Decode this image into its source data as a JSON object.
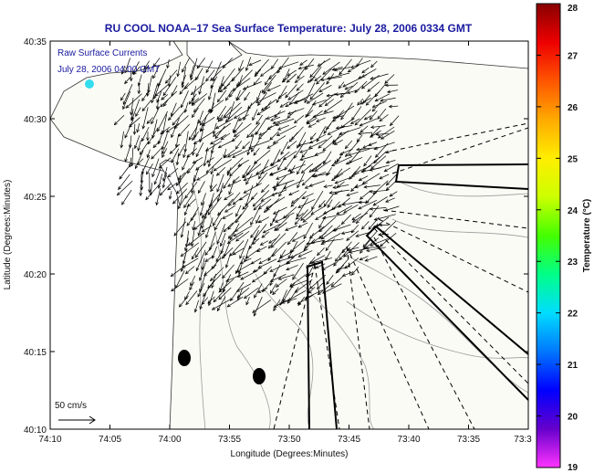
{
  "title": "RU COOL  NOAA–17  Sea Surface Temperature:  July 28, 2006 0334 GMT",
  "legend": {
    "line1": "Raw Surface Currents",
    "line2": "July 28, 2006 04:00 GMT",
    "scale_label": "50 cm/s"
  },
  "axes": {
    "xlabel": "Longitude (Degrees:Minutes)",
    "ylabel": "Latitude (Degrees:Minutes)",
    "x_ticks": [
      "74:10",
      "74:05",
      "74:00",
      "73:55",
      "73:50",
      "73:45",
      "73:40",
      "73:35",
      "73:3"
    ],
    "y_ticks": [
      "40:35",
      "40:30",
      "40:25",
      "40:20",
      "40:15",
      "40:10"
    ]
  },
  "colorbar": {
    "label": "Temperature (°C)",
    "ticks": [
      "28",
      "27",
      "26",
      "25",
      "24",
      "23",
      "22",
      "21",
      "20",
      "19"
    ],
    "min": 19,
    "max": 28,
    "colors": [
      "#ff33ff",
      "#6600cc",
      "#0000ff",
      "#0077ff",
      "#00ddff",
      "#00ff88",
      "#44ff00",
      "#ccff00",
      "#ffee00",
      "#ffaa00",
      "#ff5500",
      "#ee0000",
      "#880000"
    ]
  },
  "colors": {
    "land": "#ffffff",
    "ocean": "#f8f8f2",
    "title": "#1a1aa0",
    "arrows": "#000000",
    "contours": "#888888"
  }
}
